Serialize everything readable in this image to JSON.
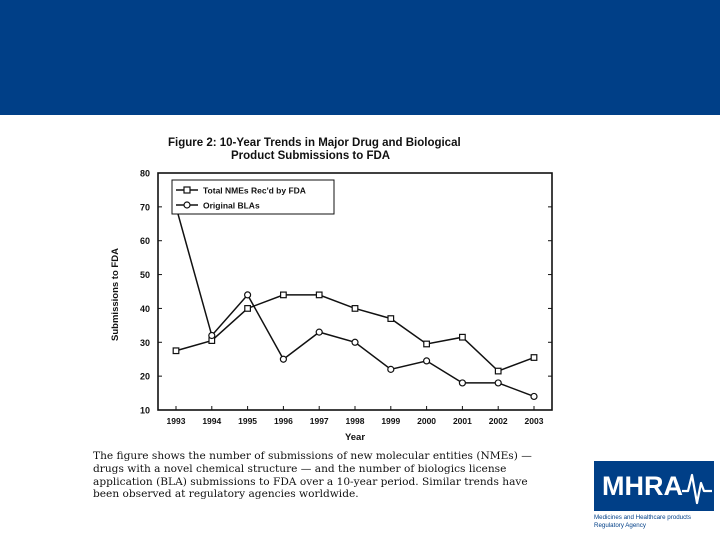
{
  "chart_data": {
    "type": "line",
    "title": "Figure 2:  10-Year Trends in Major Drug and Biological",
    "subtitle": "Product Submissions to FDA",
    "xlabel": "Year",
    "ylabel": "Submissions to FDA",
    "categories": [
      "1993",
      "1994",
      "1995",
      "1996",
      "1997",
      "1998",
      "1999",
      "2000",
      "2001",
      "2002",
      "2003"
    ],
    "ylim": [
      10,
      80
    ],
    "yticks": [
      "10",
      "20",
      "30",
      "40",
      "50",
      "60",
      "70",
      "80"
    ],
    "legend_position": "top-left",
    "grid": false,
    "series": [
      {
        "name": "Total NMEs Rec'd by FDA",
        "marker": "square",
        "values": [
          27.5,
          30.5,
          40,
          44,
          44,
          40,
          37,
          29.5,
          31.5,
          21.5,
          25.5
        ]
      },
      {
        "name": "Original BLAs",
        "marker": "circle",
        "values": [
          70,
          32,
          44,
          25,
          33,
          30,
          22,
          24.5,
          18,
          18,
          14
        ]
      }
    ]
  },
  "caption": {
    "lines": [
      "The figure shows the number of submissions of new molecular entities (NMEs) —",
      "drugs with a novel chemical structure — and the number of biologics license",
      "application (BLA) submissions to FDA over a 10-year period.  Similar trends have",
      "been observed at regulatory agencies worldwide."
    ]
  },
  "logo": {
    "text": "MHRA",
    "subtitle_line1": "Medicines and Healthcare products",
    "subtitle_line2": "Regulatory Agency"
  },
  "colors": {
    "banner": "#003f87",
    "line": "#111111",
    "logo_bg": "#003f87",
    "logo_text": "#ffffff"
  }
}
